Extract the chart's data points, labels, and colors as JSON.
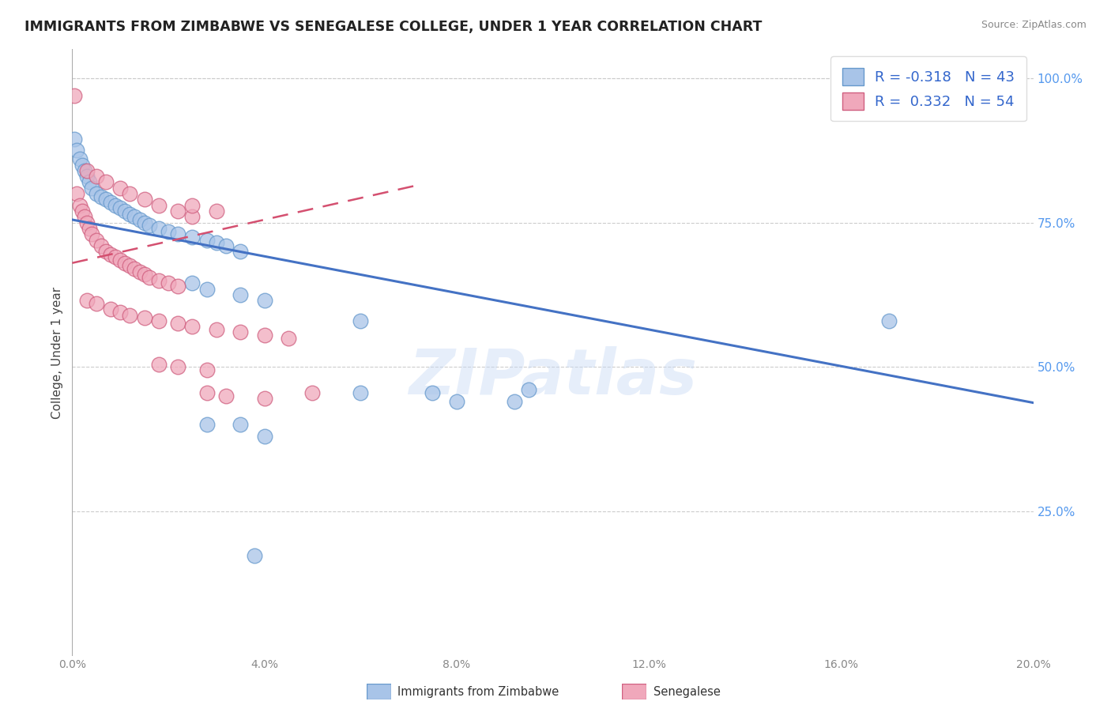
{
  "title": "IMMIGRANTS FROM ZIMBABWE VS SENEGALESE COLLEGE, UNDER 1 YEAR CORRELATION CHART",
  "source": "Source: ZipAtlas.com",
  "ylabel": "College, Under 1 year",
  "legend_label_1": "Immigrants from Zimbabwe",
  "legend_label_2": "Senegalese",
  "R1": -0.318,
  "N1": 43,
  "R2": 0.332,
  "N2": 54,
  "color_blue": "#a8c4e8",
  "color_pink": "#f0a8bb",
  "color_blue_line": "#4472c4",
  "color_pink_line": "#d45070",
  "watermark": "ZIPatlas",
  "xmin": 0.0,
  "xmax": 0.2,
  "ymin": 0.0,
  "ymax": 1.05,
  "xticks": [
    0.0,
    0.04,
    0.08,
    0.12,
    0.16,
    0.2
  ],
  "yticks": [
    0.25,
    0.5,
    0.75,
    1.0
  ],
  "blue_trend_x0": 0.0,
  "blue_trend_y0": 0.755,
  "blue_trend_x1": 0.2,
  "blue_trend_y1": 0.438,
  "pink_trend_x0": 0.0,
  "pink_trend_y0": 0.68,
  "pink_trend_x1": 0.072,
  "pink_trend_y1": 0.815,
  "blue_dots": [
    [
      0.0005,
      0.895
    ],
    [
      0.001,
      0.875
    ],
    [
      0.0015,
      0.86
    ],
    [
      0.002,
      0.85
    ],
    [
      0.0025,
      0.84
    ],
    [
      0.003,
      0.83
    ],
    [
      0.0035,
      0.82
    ],
    [
      0.004,
      0.81
    ],
    [
      0.005,
      0.8
    ],
    [
      0.006,
      0.795
    ],
    [
      0.007,
      0.79
    ],
    [
      0.008,
      0.785
    ],
    [
      0.009,
      0.78
    ],
    [
      0.01,
      0.775
    ],
    [
      0.011,
      0.77
    ],
    [
      0.012,
      0.765
    ],
    [
      0.013,
      0.76
    ],
    [
      0.014,
      0.755
    ],
    [
      0.015,
      0.75
    ],
    [
      0.016,
      0.745
    ],
    [
      0.018,
      0.74
    ],
    [
      0.02,
      0.735
    ],
    [
      0.022,
      0.73
    ],
    [
      0.025,
      0.725
    ],
    [
      0.028,
      0.72
    ],
    [
      0.03,
      0.715
    ],
    [
      0.032,
      0.71
    ],
    [
      0.035,
      0.7
    ],
    [
      0.025,
      0.645
    ],
    [
      0.028,
      0.635
    ],
    [
      0.035,
      0.625
    ],
    [
      0.04,
      0.615
    ],
    [
      0.06,
      0.58
    ],
    [
      0.075,
      0.455
    ],
    [
      0.08,
      0.44
    ],
    [
      0.092,
      0.44
    ],
    [
      0.17,
      0.58
    ],
    [
      0.06,
      0.455
    ],
    [
      0.095,
      0.46
    ],
    [
      0.028,
      0.4
    ],
    [
      0.035,
      0.4
    ],
    [
      0.038,
      0.173
    ],
    [
      0.04,
      0.38
    ]
  ],
  "pink_dots": [
    [
      0.0005,
      0.97
    ],
    [
      0.001,
      0.8
    ],
    [
      0.0015,
      0.78
    ],
    [
      0.002,
      0.77
    ],
    [
      0.0025,
      0.76
    ],
    [
      0.003,
      0.75
    ],
    [
      0.0035,
      0.74
    ],
    [
      0.004,
      0.73
    ],
    [
      0.005,
      0.72
    ],
    [
      0.006,
      0.71
    ],
    [
      0.007,
      0.7
    ],
    [
      0.008,
      0.695
    ],
    [
      0.009,
      0.69
    ],
    [
      0.01,
      0.685
    ],
    [
      0.011,
      0.68
    ],
    [
      0.012,
      0.675
    ],
    [
      0.013,
      0.67
    ],
    [
      0.014,
      0.665
    ],
    [
      0.015,
      0.66
    ],
    [
      0.016,
      0.655
    ],
    [
      0.018,
      0.65
    ],
    [
      0.02,
      0.645
    ],
    [
      0.022,
      0.64
    ],
    [
      0.003,
      0.84
    ],
    [
      0.005,
      0.83
    ],
    [
      0.007,
      0.82
    ],
    [
      0.01,
      0.81
    ],
    [
      0.012,
      0.8
    ],
    [
      0.015,
      0.79
    ],
    [
      0.018,
      0.78
    ],
    [
      0.022,
      0.77
    ],
    [
      0.025,
      0.76
    ],
    [
      0.003,
      0.615
    ],
    [
      0.005,
      0.61
    ],
    [
      0.008,
      0.6
    ],
    [
      0.01,
      0.595
    ],
    [
      0.012,
      0.59
    ],
    [
      0.015,
      0.585
    ],
    [
      0.018,
      0.58
    ],
    [
      0.022,
      0.575
    ],
    [
      0.025,
      0.57
    ],
    [
      0.03,
      0.565
    ],
    [
      0.035,
      0.56
    ],
    [
      0.04,
      0.555
    ],
    [
      0.045,
      0.55
    ],
    [
      0.018,
      0.505
    ],
    [
      0.022,
      0.5
    ],
    [
      0.028,
      0.495
    ],
    [
      0.028,
      0.455
    ],
    [
      0.032,
      0.45
    ],
    [
      0.04,
      0.445
    ],
    [
      0.05,
      0.455
    ],
    [
      0.025,
      0.78
    ],
    [
      0.03,
      0.77
    ]
  ]
}
